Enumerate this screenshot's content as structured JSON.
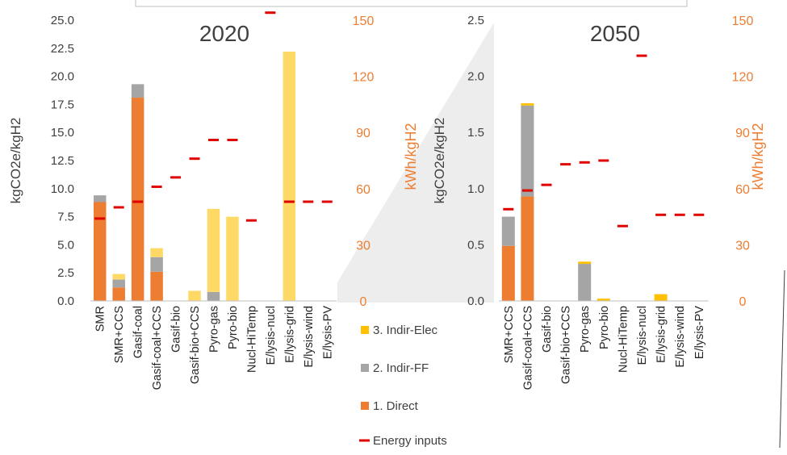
{
  "colors": {
    "direct": "#ED7D31",
    "indir_ff": "#A5A5A5",
    "indir_elec_2020": "#FFD966",
    "indir_elec_2050": "#FFC000",
    "energy": "#E00000",
    "right_axis": "#ED7D31"
  },
  "legend": [
    {
      "key": "indir_elec",
      "label": "3. Indir-Elec"
    },
    {
      "key": "indir_ff",
      "label": "2. Indir-FF"
    },
    {
      "key": "direct",
      "label": "1. Direct"
    },
    {
      "key": "energy",
      "label": "Energy inputs"
    }
  ],
  "chart_data": [
    {
      "type": "bar",
      "stacked": true,
      "title": "2020",
      "ylabel": "kgCO2e/kgH2",
      "y2label": "kWh/kgH2",
      "ylim": [
        0,
        25
      ],
      "y2lim": [
        0,
        150
      ],
      "yticks": [
        "0.0",
        "2.5",
        "5.0",
        "7.5",
        "10.0",
        "12.5",
        "15.0",
        "17.5",
        "20.0",
        "22.5",
        "25.0"
      ],
      "y2ticks": [
        "0",
        "30",
        "60",
        "90",
        "120",
        "150"
      ],
      "categories": [
        "SMR",
        "SMR+CCS",
        "Gasif-coal",
        "Gasif-coal+CCS",
        "Gasif-bio",
        "Gasif-bio+CCS",
        "Pyro-gas",
        "Pyro-bio",
        "Nucl-HiTemp",
        "E/lysis-nucl",
        "E/lysis-grid",
        "E/lysis-wind",
        "E/lysis-PV"
      ],
      "series": [
        {
          "name": "1. Direct",
          "key": "direct",
          "values": [
            8.8,
            1.2,
            18.1,
            2.6,
            0,
            0,
            0,
            0,
            0,
            0,
            0,
            0,
            0
          ]
        },
        {
          "name": "2. Indir-FF",
          "key": "indir_ff",
          "values": [
            0.6,
            0.7,
            1.2,
            1.3,
            0,
            0,
            0.8,
            0,
            0,
            0,
            0,
            0,
            0
          ]
        },
        {
          "name": "3. Indir-Elec",
          "key": "indir_elec",
          "values": [
            0,
            0.5,
            0,
            0.8,
            0,
            0.9,
            7.4,
            7.5,
            0,
            0,
            22.2,
            0,
            0
          ]
        },
        {
          "name": "Energy inputs",
          "key": "energy",
          "axis": "right",
          "values": [
            44,
            50,
            53,
            61,
            66,
            76,
            86,
            86,
            43,
            154,
            53,
            53,
            53
          ]
        }
      ]
    },
    {
      "type": "bar",
      "stacked": true,
      "title": "2050",
      "ylabel": "kgCO2e/kgH2",
      "y2label": "kWh/kgH2",
      "ylim": [
        0,
        2.5
      ],
      "y2lim": [
        0,
        150
      ],
      "yticks": [
        "0.0",
        "0.5",
        "1.0",
        "1.5",
        "2.0",
        "2.5"
      ],
      "y2ticks": [
        "0",
        "30",
        "60",
        "90",
        "120",
        "150"
      ],
      "categories": [
        "SMR+CCS",
        "Gasif-coal+CCS",
        "Gasif-bio",
        "Gasif-bio+CCS",
        "Pyro-gas",
        "Pyro-bio",
        "Nucl-HiTemp",
        "E/lysis-nucl",
        "E/lysis-grid",
        "E/lysis-wind",
        "E/lysis-PV"
      ],
      "series": [
        {
          "name": "1. Direct",
          "key": "direct",
          "values": [
            0.49,
            0.93,
            0,
            0,
            0,
            0,
            0,
            0,
            0,
            0,
            0
          ]
        },
        {
          "name": "2. Indir-FF",
          "key": "indir_ff",
          "values": [
            0.26,
            0.81,
            0,
            0,
            0.33,
            0,
            0,
            0,
            0,
            0,
            0
          ]
        },
        {
          "name": "3. Indir-Elec",
          "key": "indir_elec",
          "values": [
            0,
            0.02,
            0,
            0,
            0.02,
            0.02,
            0,
            0,
            0.06,
            0,
            0
          ]
        },
        {
          "name": "Energy inputs",
          "key": "energy",
          "axis": "right",
          "values": [
            49,
            59,
            62,
            73,
            74,
            75,
            40,
            131,
            46,
            46,
            46
          ]
        }
      ]
    }
  ]
}
